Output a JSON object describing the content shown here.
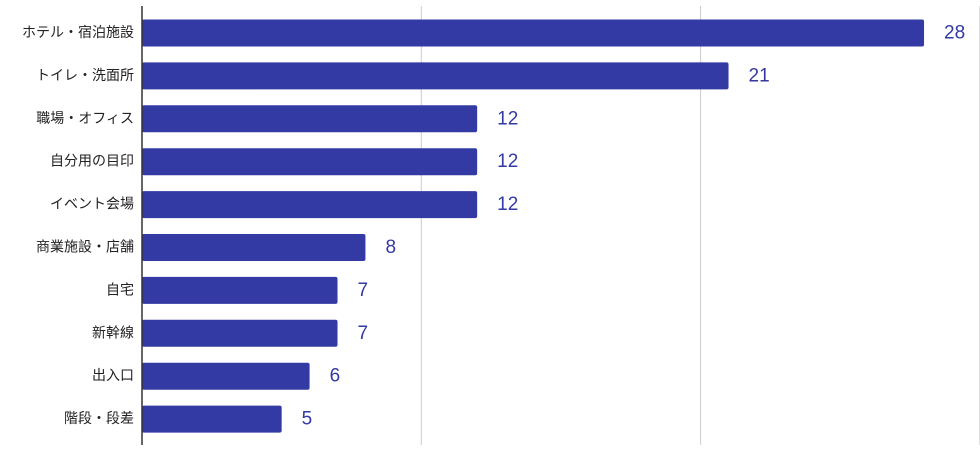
{
  "chart_data": {
    "type": "bar",
    "orientation": "horizontal",
    "categories": [
      "ホテル・宿泊施設",
      "トイレ・洗面所",
      "職場・オフィス",
      "自分用の目印",
      "イベント会場",
      "商業施設・店舗",
      "自宅",
      "新幹線",
      "出入口",
      "階段・段差"
    ],
    "values": [
      28,
      21,
      12,
      12,
      12,
      8,
      7,
      7,
      6,
      5
    ],
    "value_labels": [
      "28",
      "21",
      "12",
      "12",
      "12",
      "8",
      "7",
      "7",
      "6",
      "5"
    ],
    "title": "",
    "xlabel": "",
    "ylabel": "",
    "xlim": [
      0,
      30
    ],
    "gridlines_at": [
      10,
      20,
      30
    ],
    "grid": true,
    "legend": "none",
    "bar_color": "#333aa3",
    "value_label_color": "#333aa3",
    "grid_color": "#cccccc"
  }
}
